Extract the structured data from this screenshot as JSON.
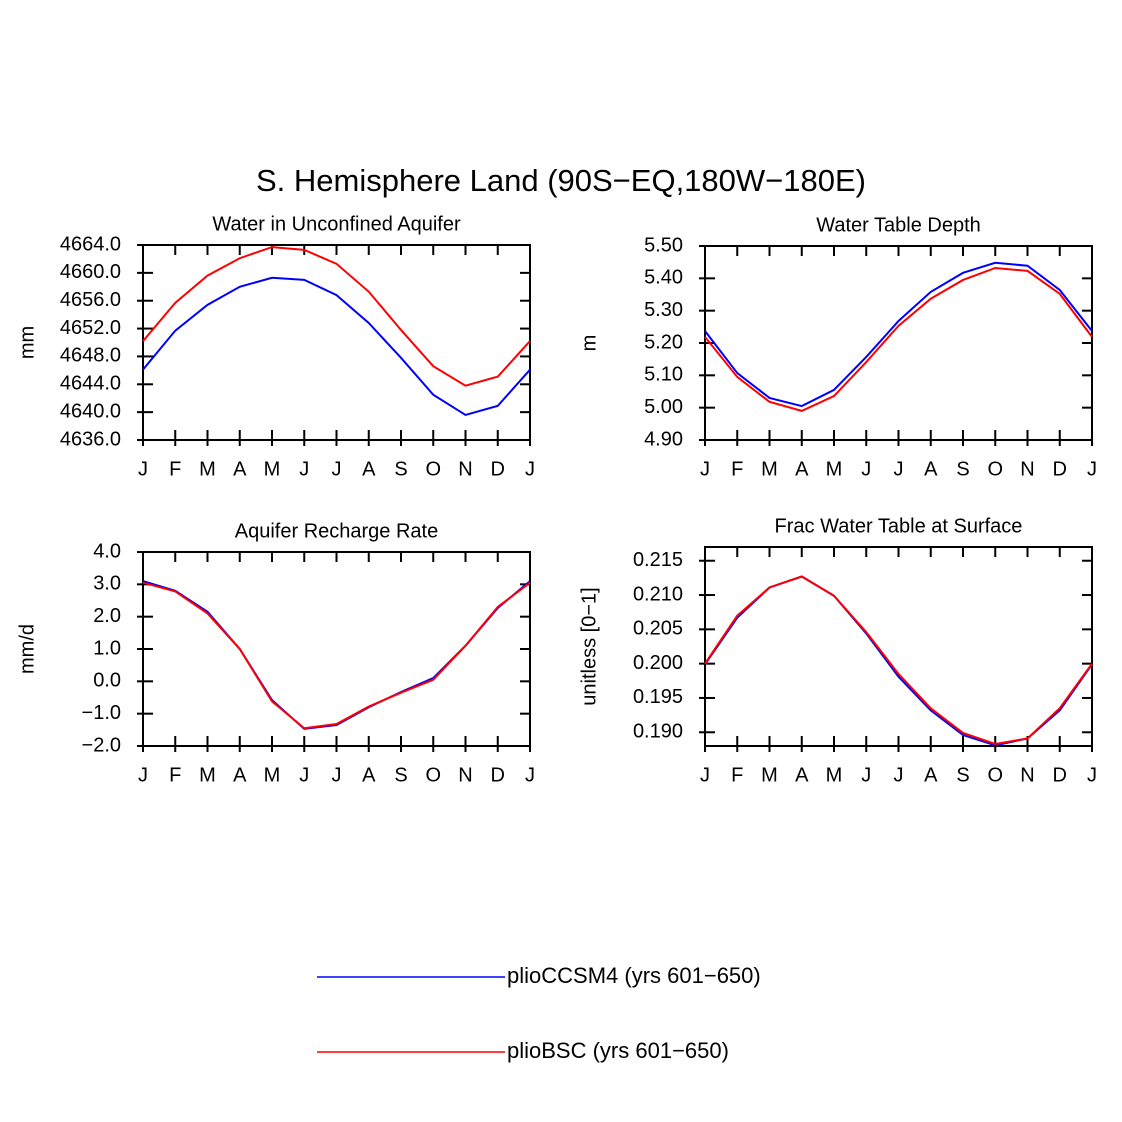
{
  "title": "S. Hemisphere Land (90S−EQ,180W−180E)",
  "chart_data": [
    {
      "type": "line",
      "title": "Water in Unconfined Aquifer",
      "y_label": "mm",
      "categories": [
        "J",
        "F",
        "M",
        "A",
        "M",
        "J",
        "J",
        "A",
        "S",
        "O",
        "N",
        "D",
        "J"
      ],
      "series": [
        {
          "name": "plioCCSM4 (yrs 601−650)",
          "color": "#0000ff",
          "values": [
            4646.1,
            4651.7,
            4655.4,
            4658.0,
            4659.3,
            4659.0,
            4656.8,
            4652.8,
            4647.8,
            4642.5,
            4639.6,
            4640.9,
            4646.1
          ]
        },
        {
          "name": "plioBSC (yrs 601−650)",
          "color": "#ff0000",
          "values": [
            4650.2,
            4655.7,
            4659.6,
            4662.1,
            4663.7,
            4663.3,
            4661.3,
            4657.3,
            4651.8,
            4646.6,
            4643.8,
            4645.1,
            4650.2
          ]
        }
      ],
      "ylim": [
        4636,
        4664
      ],
      "yticks": [
        {
          "value": 4636,
          "label": "4636.0"
        },
        {
          "value": 4640,
          "label": "4640.0"
        },
        {
          "value": 4644,
          "label": "4644.0"
        },
        {
          "value": 4648,
          "label": "4648.0"
        },
        {
          "value": 4652,
          "label": "4652.0"
        },
        {
          "value": 4656,
          "label": "4656.0"
        },
        {
          "value": 4660,
          "label": "4660.0"
        },
        {
          "value": 4664,
          "label": "4664.0"
        }
      ]
    },
    {
      "type": "line",
      "title": "Water Table Depth",
      "y_label": "m",
      "categories": [
        "J",
        "F",
        "M",
        "A",
        "M",
        "J",
        "J",
        "A",
        "S",
        "O",
        "N",
        "D",
        "J"
      ],
      "series": [
        {
          "color": "#0000ff",
          "values": [
            5.237,
            5.107,
            5.03,
            5.005,
            5.055,
            5.157,
            5.268,
            5.358,
            5.417,
            5.448,
            5.439,
            5.364,
            5.237
          ]
        },
        {
          "color": "#ff0000",
          "values": [
            5.219,
            5.095,
            5.018,
            4.99,
            5.036,
            5.141,
            5.253,
            5.337,
            5.395,
            5.432,
            5.423,
            5.352,
            5.219
          ]
        }
      ],
      "ylim": [
        4.9,
        5.5
      ],
      "yticks": [
        {
          "value": 4.9,
          "label": "4.90"
        },
        {
          "value": 5.0,
          "label": "5.00"
        },
        {
          "value": 5.1,
          "label": "5.10"
        },
        {
          "value": 5.2,
          "label": "5.20"
        },
        {
          "value": 5.3,
          "label": "5.30"
        },
        {
          "value": 5.4,
          "label": "5.40"
        },
        {
          "value": 5.5,
          "label": "5.50"
        }
      ]
    },
    {
      "type": "line",
      "title": "Aquifer Recharge Rate",
      "y_label": "mm/d",
      "categories": [
        "J",
        "F",
        "M",
        "A",
        "M",
        "J",
        "J",
        "A",
        "S",
        "O",
        "N",
        "D",
        "J"
      ],
      "series": [
        {
          "color": "#0000ff",
          "values": [
            3.1,
            2.8,
            2.15,
            1.0,
            -0.58,
            -1.47,
            -1.35,
            -0.8,
            -0.33,
            0.1,
            1.1,
            2.27,
            3.1
          ]
        },
        {
          "color": "#ff0000",
          "values": [
            3.05,
            2.78,
            2.1,
            1.0,
            -0.62,
            -1.45,
            -1.32,
            -0.78,
            -0.35,
            0.05,
            1.1,
            2.3,
            3.05
          ]
        }
      ],
      "ylim": [
        -2,
        4
      ],
      "yticks": [
        {
          "value": -2,
          "label": "−2.0"
        },
        {
          "value": -1,
          "label": "−1.0"
        },
        {
          "value": 0,
          "label": "0.0"
        },
        {
          "value": 1,
          "label": "1.0"
        },
        {
          "value": 2,
          "label": "2.0"
        },
        {
          "value": 3,
          "label": "3.0"
        },
        {
          "value": 4,
          "label": "4.0"
        }
      ]
    },
    {
      "type": "line",
      "title": "Frac Water Table at Surface",
      "y_label": "unitless [0−1]",
      "categories": [
        "J",
        "F",
        "M",
        "A",
        "M",
        "J",
        "J",
        "A",
        "S",
        "O",
        "N",
        "D",
        "J"
      ],
      "series": [
        {
          "color": "#0000ff",
          "values": [
            0.1999,
            0.2067,
            0.2111,
            0.2127,
            0.2099,
            0.2044,
            0.1981,
            0.1932,
            0.1896,
            0.1881,
            0.1891,
            0.1932,
            0.1999
          ]
        },
        {
          "color": "#ff0000",
          "values": [
            0.2,
            0.207,
            0.2111,
            0.2127,
            0.2099,
            0.2046,
            0.1985,
            0.1935,
            0.1899,
            0.1883,
            0.1891,
            0.1935,
            0.2
          ]
        }
      ],
      "ylim": [
        0.188,
        0.217
      ],
      "yticks": [
        {
          "value": 0.19,
          "label": "0.190"
        },
        0.195,
        {
          "value": 0.2,
          "label": "0.200"
        },
        0.205,
        {
          "value": 0.21,
          "label": "0.210"
        },
        0.215
      ]
    }
  ]
}
